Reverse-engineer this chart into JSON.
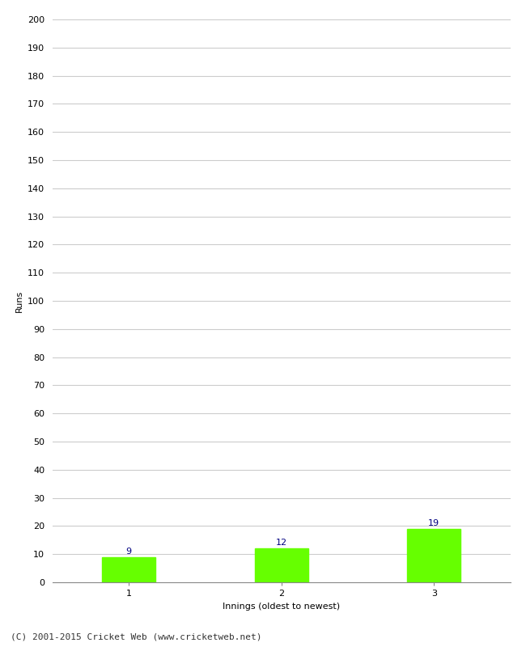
{
  "categories": [
    "1",
    "2",
    "3"
  ],
  "values": [
    9,
    12,
    19
  ],
  "bar_color": "#66ff00",
  "bar_edgecolor": "#66ff00",
  "label_color": "#000080",
  "label_fontsize": 8,
  "ylabel": "Runs",
  "xlabel": "Innings (oldest to newest)",
  "ylim": [
    0,
    200
  ],
  "ytick_step": 10,
  "grid_color": "#cccccc",
  "background_color": "#ffffff",
  "footer": "(C) 2001-2015 Cricket Web (www.cricketweb.net)",
  "bar_width": 0.35,
  "tick_fontsize": 8,
  "ylabel_fontsize": 8,
  "xlabel_fontsize": 8,
  "footer_fontsize": 8
}
